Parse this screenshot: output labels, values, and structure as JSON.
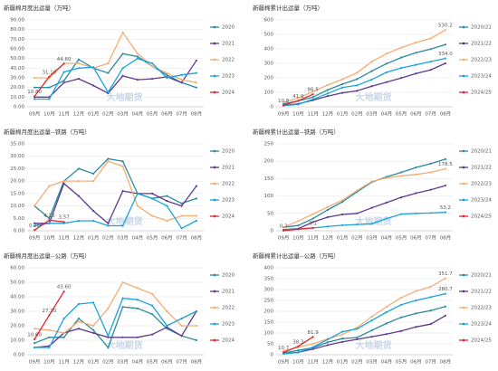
{
  "watermark": "大地期货",
  "chart_data": [
    {
      "type": "line",
      "title": "新疆棉月度出运量（万吨）",
      "categories": [
        "09月",
        "10月",
        "11月",
        "12月",
        "01月",
        "02月",
        "03月",
        "04月",
        "05月",
        "06月",
        "07月",
        "08月"
      ],
      "ylim": [
        0,
        90
      ],
      "yticks": [
        {
          "value": 0,
          "label": "0.00"
        },
        {
          "value": 10,
          "label": "10.00"
        },
        {
          "value": 20,
          "label": "20.00"
        },
        {
          "value": 30,
          "label": "30.00"
        },
        {
          "value": 40,
          "label": "40.00"
        },
        {
          "value": 50,
          "label": "50.00"
        },
        {
          "value": 60,
          "label": "60.00"
        },
        {
          "value": 70,
          "label": "70.00"
        },
        {
          "value": 80,
          "label": "80.00"
        },
        {
          "value": 90,
          "label": "90.00"
        }
      ],
      "grid": true,
      "legend": "right",
      "series": [
        {
          "name": "2020",
          "color": "#2a8a9e",
          "values": [
            20,
            20,
            27,
            49,
            40,
            35,
            55,
            52,
            42,
            33,
            25,
            20
          ]
        },
        {
          "name": "2021",
          "color": "#5e3a8e",
          "values": [
            10,
            10,
            25,
            29,
            22,
            14,
            32,
            28,
            29,
            31,
            25,
            48
          ]
        },
        {
          "name": "2022",
          "color": "#f6ac74",
          "values": [
            30,
            30,
            45,
            45,
            40,
            45,
            77,
            55,
            42,
            35,
            28,
            25
          ]
        },
        {
          "name": "2023",
          "color": "#19a3dc",
          "values": [
            8,
            8,
            36,
            40,
            41,
            15,
            40,
            50,
            45,
            30,
            33,
            35
          ]
        },
        {
          "name": "2024",
          "color": "#e3262b",
          "values": [
            10.8,
            31.1,
            44.6,
            null,
            null,
            null,
            null,
            null,
            null,
            null,
            null,
            null
          ],
          "value_labels": [
            "10.80",
            "31.10",
            "44.60",
            null,
            null,
            null,
            null,
            null,
            null,
            null,
            null,
            null
          ]
        }
      ]
    },
    {
      "type": "line",
      "title": "新疆棉累计出运量（万吨）",
      "categories": [
        "09月",
        "10月",
        "11月",
        "12月",
        "01月",
        "02月",
        "03月",
        "04月",
        "05月",
        "06月",
        "07月",
        "08月"
      ],
      "ylim": [
        0,
        600
      ],
      "yticks": [
        0,
        100,
        200,
        300,
        400,
        500,
        600
      ],
      "grid": true,
      "legend": "right",
      "series": [
        {
          "name": "2020/21",
          "color": "#2a8a9e",
          "values": [
            20,
            40,
            67,
            116,
            156,
            191,
            246,
            298,
            340,
            373,
            398,
            430
          ]
        },
        {
          "name": "2021/22",
          "color": "#5e3a8e",
          "values": [
            10,
            20,
            45,
            74,
            96,
            110,
            142,
            170,
            199,
            230,
            255,
            300
          ]
        },
        {
          "name": "2022/23",
          "color": "#f6ac74",
          "values": [
            30,
            60,
            105,
            150,
            190,
            235,
            312,
            367,
            409,
            444,
            472,
            530.2
          ],
          "value_labels": [
            null,
            null,
            null,
            null,
            null,
            null,
            null,
            null,
            null,
            null,
            null,
            "530.2"
          ]
        },
        {
          "name": "2023/24",
          "color": "#19a3dc",
          "values": [
            8,
            16,
            52,
            92,
            133,
            148,
            188,
            238,
            268,
            290,
            312,
            334
          ],
          "value_labels": [
            null,
            null,
            null,
            null,
            null,
            null,
            null,
            null,
            null,
            null,
            null,
            "334.0"
          ]
        },
        {
          "name": "2024/25",
          "color": "#e3262b",
          "values": [
            10.8,
            41.9,
            86.5,
            null,
            null,
            null,
            null,
            null,
            null,
            null,
            null,
            null
          ],
          "value_labels": [
            "10.8",
            "41.9",
            "86.5",
            null,
            null,
            null,
            null,
            null,
            null,
            null,
            null,
            null
          ]
        }
      ]
    },
    {
      "type": "line",
      "title": "新疆棉月度出运量--铁路（万吨）",
      "categories": [
        "09月",
        "10月",
        "11月",
        "12月",
        "01月",
        "02月",
        "03月",
        "04月",
        "05月",
        "06月",
        "07月",
        "08月"
      ],
      "ylim": [
        0,
        35
      ],
      "yticks": [
        {
          "value": 0,
          "label": "0.00"
        },
        {
          "value": 5,
          "label": "5.00"
        },
        {
          "value": 10,
          "label": "10.00"
        },
        {
          "value": 15,
          "label": "15.00"
        },
        {
          "value": 20,
          "label": "20.00"
        },
        {
          "value": 25,
          "label": "25.00"
        },
        {
          "value": 30,
          "label": "30.00"
        },
        {
          "value": 35,
          "label": "35.00"
        }
      ],
      "grid": true,
      "legend": "right",
      "series": [
        {
          "name": "2020",
          "color": "#2a8a9e",
          "values": [
            10,
            5,
            20,
            25,
            23,
            29,
            28,
            15,
            13,
            14,
            11,
            13
          ]
        },
        {
          "name": "2021",
          "color": "#5e3a8e",
          "values": [
            3,
            3,
            19,
            14,
            8,
            3,
            16,
            15,
            15,
            12,
            10,
            18
          ]
        },
        {
          "name": "2022",
          "color": "#f6ac74",
          "values": [
            10,
            18,
            20,
            20,
            20,
            28,
            26,
            10,
            6,
            4,
            6,
            6
          ]
        },
        {
          "name": "2023",
          "color": "#19a3dc",
          "values": [
            2,
            3,
            3,
            4,
            4,
            2,
            2,
            15,
            13,
            10,
            1,
            4
          ]
        },
        {
          "name": "2024",
          "color": "#e3262b",
          "values": [
            0.26,
            4.26,
            3.57,
            null,
            null,
            null,
            null,
            null,
            null,
            null,
            null,
            null
          ],
          "value_labels": [
            "0.26",
            "4.26",
            "3.57",
            null,
            null,
            null,
            null,
            null,
            null,
            null,
            null,
            null
          ]
        }
      ]
    },
    {
      "type": "line",
      "title": "新疆棉累计出运量--铁路（万吨）",
      "categories": [
        "09月",
        "10月",
        "11月",
        "12月",
        "01月",
        "02月",
        "03月",
        "04月",
        "05月",
        "06月",
        "07月",
        "08月"
      ],
      "ylim": [
        0,
        250
      ],
      "yticks": [
        0,
        50,
        100,
        150,
        200,
        250
      ],
      "grid": true,
      "legend": "right",
      "series": [
        {
          "name": "2020/21",
          "color": "#2a8a9e",
          "values": [
            10,
            15,
            35,
            60,
            83,
            112,
            140,
            155,
            168,
            182,
            193,
            206
          ]
        },
        {
          "name": "2021/22",
          "color": "#5e3a8e",
          "values": [
            3,
            6,
            25,
            39,
            47,
            50,
            66,
            81,
            96,
            108,
            118,
            130
          ]
        },
        {
          "name": "2022/23",
          "color": "#f6ac74",
          "values": [
            10,
            28,
            48,
            68,
            88,
            116,
            142,
            152,
            158,
            162,
            168,
            178.5
          ],
          "value_labels": [
            null,
            null,
            null,
            null,
            null,
            null,
            null,
            null,
            null,
            null,
            null,
            "178.5"
          ]
        },
        {
          "name": "2023/24",
          "color": "#19a3dc",
          "values": [
            2,
            5,
            8,
            12,
            16,
            18,
            20,
            35,
            48,
            50,
            51,
            53.2
          ],
          "value_labels": [
            null,
            null,
            null,
            null,
            null,
            null,
            null,
            null,
            null,
            null,
            null,
            "53.2"
          ]
        },
        {
          "name": "2024/25",
          "color": "#e3262b",
          "values": [
            0.2,
            4.5,
            8.1,
            null,
            null,
            null,
            null,
            null,
            null,
            null,
            null,
            null
          ],
          "value_labels": [
            "0.2",
            null,
            "8.1",
            null,
            null,
            null,
            null,
            null,
            null,
            null,
            null,
            null
          ]
        }
      ]
    },
    {
      "type": "line",
      "title": "新疆棉月度出运量--公路（万吨）",
      "categories": [
        "09月",
        "10月",
        "11月",
        "12月",
        "01月",
        "02月",
        "03月",
        "04月",
        "05月",
        "06月",
        "07月",
        "08月"
      ],
      "ylim": [
        0,
        60
      ],
      "yticks": [
        {
          "value": 0,
          "label": "0.00"
        },
        {
          "value": 10,
          "label": "10.00"
        },
        {
          "value": 20,
          "label": "20.00"
        },
        {
          "value": 30,
          "label": "30.00"
        },
        {
          "value": 40,
          "label": "40.00"
        },
        {
          "value": 50,
          "label": "50.00"
        },
        {
          "value": 60,
          "label": "60.00"
        }
      ],
      "grid": true,
      "legend": "right",
      "series": [
        {
          "name": "2020",
          "color": "#2a8a9e",
          "values": [
            8,
            12,
            12,
            25,
            17,
            5,
            33,
            32,
            28,
            18,
            13,
            10
          ]
        },
        {
          "name": "2021",
          "color": "#5e3a8e",
          "values": [
            5,
            6,
            15,
            18,
            15,
            12,
            12,
            12,
            14,
            19,
            13,
            30
          ]
        },
        {
          "name": "2022",
          "color": "#f6ac74",
          "values": [
            18,
            17,
            15,
            23,
            20,
            32,
            50,
            46,
            42,
            30,
            20,
            20
          ]
        },
        {
          "name": "2023",
          "color": "#19a3dc",
          "values": [
            5,
            5,
            25,
            35,
            36,
            13,
            39,
            38,
            34,
            20,
            25,
            30
          ]
        },
        {
          "name": "2024",
          "color": "#e3262b",
          "values": [
            10.6,
            27.3,
            43.6,
            null,
            null,
            null,
            null,
            null,
            null,
            null,
            null,
            null
          ],
          "value_labels": [
            "10.60",
            "27.30",
            "43.60",
            null,
            null,
            null,
            null,
            null,
            null,
            null,
            null,
            null
          ]
        }
      ]
    },
    {
      "type": "line",
      "title": "新疆棉累计出运量--公路（万吨）",
      "categories": [
        "09月",
        "10月",
        "11月",
        "12月",
        "01月",
        "02月",
        "03月",
        "04月",
        "05月",
        "06月",
        "07月",
        "08月"
      ],
      "ylim": [
        0,
        400
      ],
      "yticks": [
        0,
        50,
        100,
        150,
        200,
        250,
        300,
        350,
        400
      ],
      "grid": true,
      "legend": "right",
      "series": [
        {
          "name": "2020/21",
          "color": "#2a8a9e",
          "values": [
            8,
            20,
            32,
            57,
            74,
            79,
            112,
            144,
            172,
            190,
            203,
            222
          ]
        },
        {
          "name": "2021/22",
          "color": "#5e3a8e",
          "values": [
            5,
            11,
            26,
            44,
            59,
            71,
            83,
            95,
            109,
            128,
            141,
            180
          ]
        },
        {
          "name": "2022/23",
          "color": "#f6ac74",
          "values": [
            18,
            35,
            50,
            73,
            93,
            125,
            175,
            221,
            263,
            293,
            313,
            351.7
          ],
          "value_labels": [
            null,
            null,
            null,
            null,
            null,
            null,
            null,
            null,
            null,
            null,
            null,
            "351.7"
          ]
        },
        {
          "name": "2023/24",
          "color": "#19a3dc",
          "values": [
            5,
            10,
            35,
            70,
            106,
            119,
            158,
            196,
            230,
            250,
            265,
            280.7
          ],
          "value_labels": [
            null,
            null,
            null,
            null,
            null,
            null,
            null,
            null,
            null,
            null,
            null,
            "280.7"
          ]
        },
        {
          "name": "2024/25",
          "color": "#e3262b",
          "values": [
            10.7,
            38.3,
            81.9,
            null,
            null,
            null,
            null,
            null,
            null,
            null,
            null,
            null
          ],
          "value_labels": [
            "10.7",
            "38.3",
            "81.9",
            null,
            null,
            null,
            null,
            null,
            null,
            null,
            null,
            null
          ]
        }
      ]
    }
  ]
}
